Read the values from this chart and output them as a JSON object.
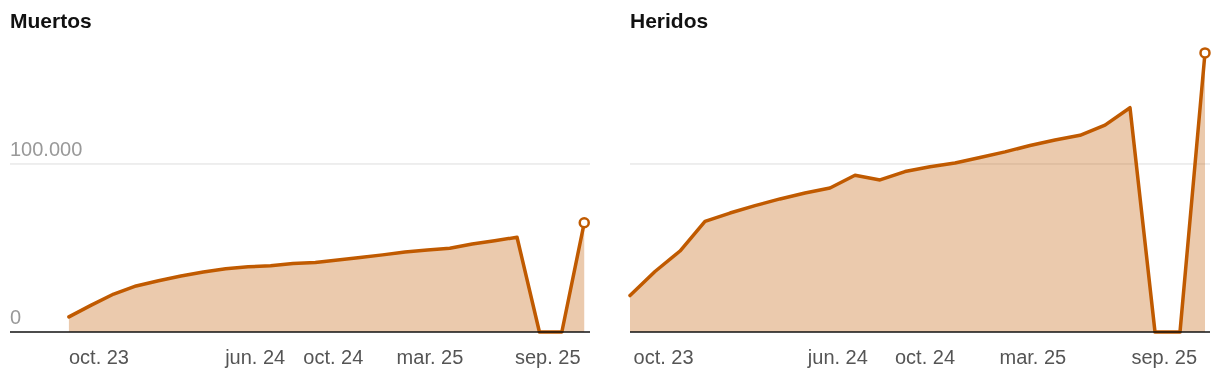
{
  "chart_data": [
    {
      "type": "area",
      "title": "Muertos",
      "x": [
        "2023-08-15",
        "2023-09-19",
        "2023-10-24",
        "2023-11-28",
        "2024-01-02",
        "2024-02-06",
        "2024-03-12",
        "2024-04-16",
        "2024-05-21",
        "2024-06-25",
        "2024-07-30",
        "2024-09-03",
        "2024-10-08",
        "2024-11-12",
        "2024-12-17",
        "2025-01-21",
        "2025-02-25",
        "2025-04-01",
        "2025-05-06",
        "2025-06-10",
        "2025-07-15",
        "2025-08-19",
        "2025-09-23",
        "2025-10-28"
      ],
      "series": [
        {
          "color": "#c05a00",
          "values": [
            9000,
            16000,
            22600,
            27400,
            30500,
            33300,
            35700,
            37600,
            38800,
            39500,
            40700,
            41400,
            42900,
            44300,
            45900,
            47600,
            48800,
            49800,
            52400,
            54300,
            56400,
            0,
            0,
            65000
          ]
        }
      ],
      "xlim": [
        "2023-05-15",
        "2025-11-06"
      ],
      "xticks": [
        {
          "value": "2023-10-01",
          "label": "oct. 23"
        },
        {
          "value": "2024-06-01",
          "label": "jun. 24"
        },
        {
          "value": "2024-10-01",
          "label": "oct. 24"
        },
        {
          "value": "2025-03-01",
          "label": "mar. 25"
        },
        {
          "value": "2025-09-01",
          "label": "sep. 25"
        }
      ],
      "ylim": [
        0,
        197600
      ],
      "yticks": [
        {
          "value": 0,
          "label": "0"
        },
        {
          "value": 100000,
          "label": "100.000"
        }
      ],
      "grid": "y"
    },
    {
      "type": "area",
      "title": "Heridos",
      "x": [
        "2023-08-15",
        "2023-09-19",
        "2023-10-24",
        "2023-11-28",
        "2024-01-02",
        "2024-02-06",
        "2024-03-12",
        "2024-04-16",
        "2024-05-21",
        "2024-06-25",
        "2024-07-30",
        "2024-09-03",
        "2024-10-08",
        "2024-11-12",
        "2024-12-17",
        "2025-01-21",
        "2025-02-25",
        "2025-04-01",
        "2025-05-06",
        "2025-06-10",
        "2025-07-15",
        "2025-08-19",
        "2025-09-23",
        "2025-10-28"
      ],
      "series": [
        {
          "color": "#c05a00",
          "values": [
            21700,
            36000,
            48200,
            65800,
            70800,
            75200,
            79200,
            82700,
            85700,
            93300,
            90500,
            95500,
            98400,
            100600,
            103900,
            107200,
            111000,
            114300,
            117100,
            123100,
            133500,
            0,
            0,
            166100
          ]
        }
      ],
      "xlim": [
        "2023-08-15",
        "2025-11-04"
      ],
      "xticks": [
        {
          "value": "2023-10-01",
          "label": "oct. 23"
        },
        {
          "value": "2024-06-01",
          "label": "jun. 24"
        },
        {
          "value": "2024-10-01",
          "label": "oct. 24"
        },
        {
          "value": "2025-03-01",
          "label": "mar. 25"
        },
        {
          "value": "2025-09-01",
          "label": "sep. 25"
        }
      ],
      "ylim": [
        0,
        197600
      ],
      "yticks": [
        0,
        100000
      ],
      "grid": "y",
      "tick_labels": "x"
    }
  ]
}
